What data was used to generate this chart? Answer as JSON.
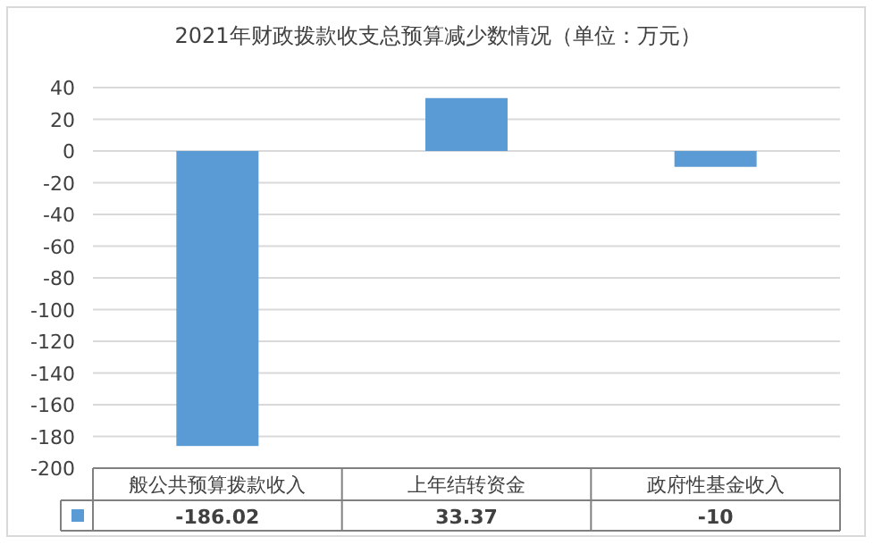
{
  "chart_data": {
    "type": "bar",
    "title": "2021年财政拨款收支总预算减少数情况（单位：万元）",
    "categories": [
      "般公共预算拨款收入",
      "上年结转资金",
      "政府性基金收入"
    ],
    "series": [
      {
        "color": "#5b9bd5",
        "values": [
          -186.02,
          33.37,
          -10
        ]
      }
    ],
    "data_labels": true,
    "ylim": [
      -200,
      40
    ],
    "yticks": [
      -200,
      -180,
      -160,
      -140,
      -120,
      -100,
      -80,
      -60,
      -40,
      -20,
      0,
      20,
      40
    ],
    "grid": "y"
  }
}
